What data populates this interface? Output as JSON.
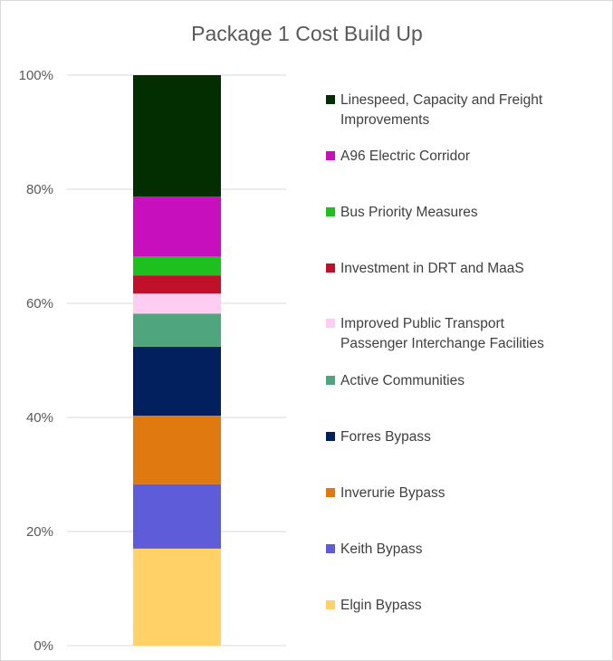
{
  "chart_data": {
    "type": "bar",
    "stacked": true,
    "title": "Package 1 Cost Build Up",
    "xlabel": "",
    "ylabel": "",
    "ylim": [
      0,
      100
    ],
    "yticks": [
      "0%",
      "20%",
      "40%",
      "60%",
      "80%",
      "100%"
    ],
    "grid": true,
    "legend_position": "right",
    "categories": [
      ""
    ],
    "series": [
      {
        "name": "Elgin Bypass",
        "values": [
          17.0
        ],
        "color": "#FFD166"
      },
      {
        "name": "Keith Bypass",
        "values": [
          11.3
        ],
        "color": "#5E5CD9"
      },
      {
        "name": "Inverurie Bypass",
        "values": [
          12.0
        ],
        "color": "#E07A10"
      },
      {
        "name": "Forres Bypass",
        "values": [
          12.1
        ],
        "color": "#03205E"
      },
      {
        "name": "Active Communities",
        "values": [
          5.8
        ],
        "color": "#4FA67E"
      },
      {
        "name": "Improved Public Transport Passenger Interchange Facilities",
        "values": [
          3.5
        ],
        "color": "#FFCCF2"
      },
      {
        "name": "Investment in DRT and MaaS",
        "values": [
          3.2
        ],
        "color": "#C0102A"
      },
      {
        "name": "Bus Priority Measures",
        "values": [
          3.3
        ],
        "color": "#1EC01E"
      },
      {
        "name": "A96 Electric Corridor",
        "values": [
          10.5
        ],
        "color": "#C80FBE"
      },
      {
        "name": "Linespeed, Capacity and Freight Improvements",
        "values": [
          21.3
        ],
        "color": "#022E02"
      }
    ]
  }
}
